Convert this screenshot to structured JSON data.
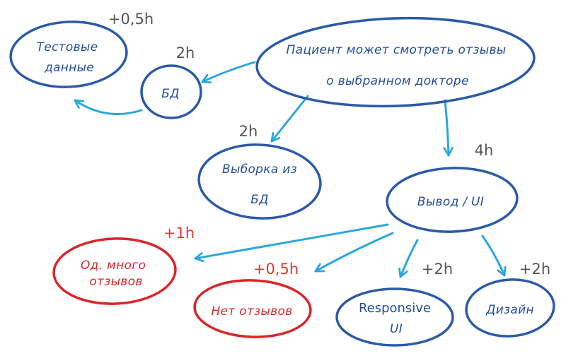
{
  "colors": {
    "node_stroke": "#2c5aa8",
    "node_text": "#244e9c",
    "alt_stroke": "#d9262a",
    "alt_text": "#d9262a",
    "arrow": "#2ba7dc",
    "estimate": "#555555",
    "estimate_alt": "#e03a2e"
  },
  "nodes": {
    "root": {
      "line1": "Пациент может смотреть отзывы",
      "line2": "о выбранном докторе"
    },
    "test_data": {
      "line1": "Тестовые",
      "line2": "данные",
      "estimate": "+0,5h"
    },
    "db": {
      "label": "БД",
      "estimate": "2h"
    },
    "select_db": {
      "line1": "Выборка из",
      "line2": "БД",
      "estimate": "2h"
    },
    "output_ui": {
      "label": "Вывод / UI",
      "estimate": "4h"
    },
    "many_reviews": {
      "line1": "Од. много",
      "line2": "отзывов",
      "estimate": "+1h"
    },
    "no_reviews": {
      "label": "Нет отзывов",
      "estimate": "+0,5h"
    },
    "responsive": {
      "line1": "Responsive",
      "line2": "UI",
      "estimate": "+2h"
    },
    "design": {
      "label": "Дизайн",
      "estimate": "+2h"
    }
  }
}
